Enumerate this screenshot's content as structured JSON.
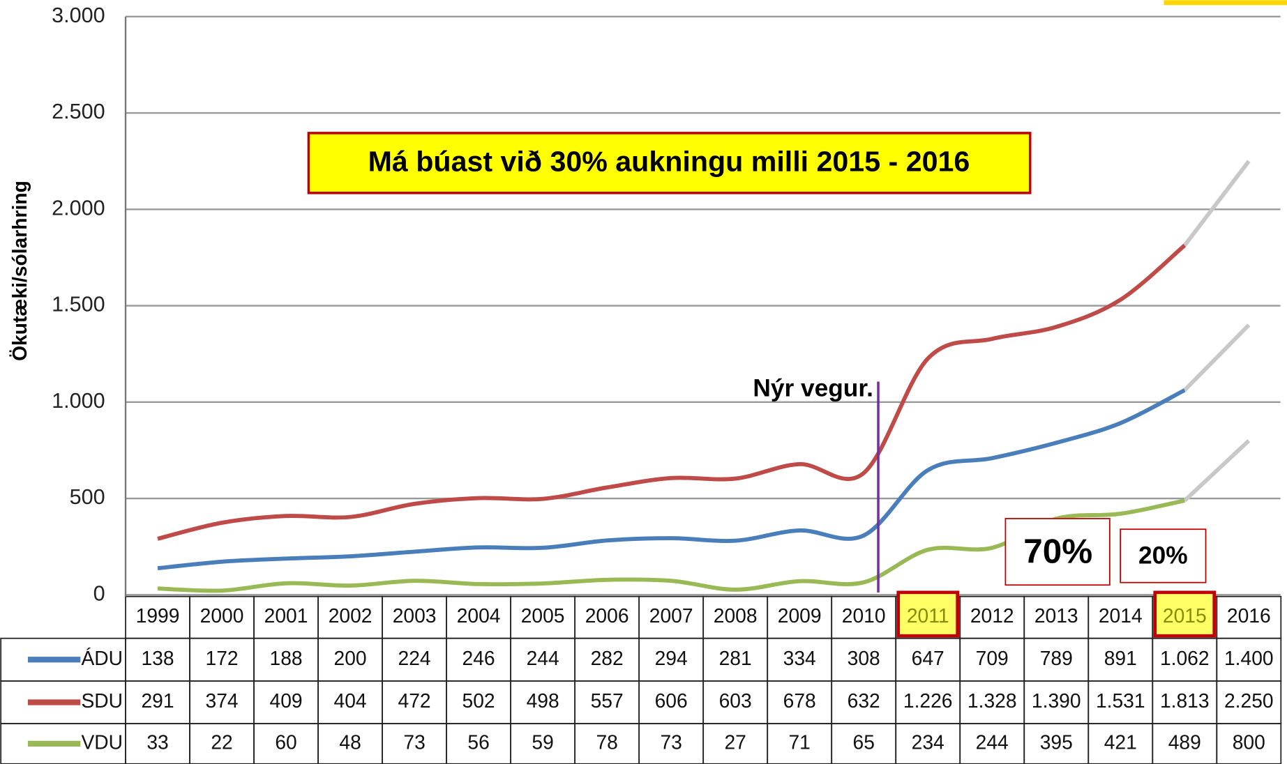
{
  "chart_data": {
    "type": "line",
    "title": "Má búast við 30% aukningu milli 2015 - 2016",
    "y_label": "Ökutæki/sólarhring",
    "annotations": {
      "new_road": "Nýr vegur.",
      "box_1": "70%",
      "box_2": "20%"
    },
    "categories": [
      "1999",
      "2000",
      "2001",
      "2002",
      "2003",
      "2004",
      "2005",
      "2006",
      "2007",
      "2008",
      "2009",
      "2010",
      "2011",
      "2012",
      "2013",
      "2014",
      "2015",
      "2016"
    ],
    "highlight": [
      "2011",
      "2015"
    ],
    "series": [
      {
        "name": "ÁDU",
        "color": "#4a7ebb",
        "values": [
          138,
          172,
          188,
          200,
          224,
          246,
          244,
          282,
          294,
          281,
          334,
          308,
          647,
          709,
          789,
          891,
          1062,
          1400
        ],
        "value_labels": [
          "138",
          "172",
          "188",
          "200",
          "224",
          "246",
          "244",
          "282",
          "294",
          "281",
          "334",
          "308",
          "647",
          "709",
          "789",
          "891",
          "1.062",
          "1.400"
        ]
      },
      {
        "name": "SDU",
        "color": "#be4b48",
        "values": [
          291,
          374,
          409,
          404,
          472,
          502,
          498,
          557,
          606,
          603,
          678,
          632,
          1226,
          1328,
          1390,
          1531,
          1813,
          2250
        ],
        "value_labels": [
          "291",
          "374",
          "409",
          "404",
          "472",
          "502",
          "498",
          "557",
          "606",
          "603",
          "678",
          "632",
          "1.226",
          "1.328",
          "1.390",
          "1.531",
          "1.813",
          "2.250"
        ]
      },
      {
        "name": "VDU",
        "color": "#98b954",
        "values": [
          33,
          22,
          60,
          48,
          73,
          56,
          59,
          78,
          73,
          27,
          71,
          65,
          234,
          244,
          395,
          421,
          489,
          800
        ],
        "value_labels": [
          "33",
          "22",
          "60",
          "48",
          "73",
          "56",
          "59",
          "78",
          "73",
          "27",
          "71",
          "65",
          "234",
          "244",
          "395",
          "421",
          "489",
          "800"
        ]
      }
    ],
    "projection_color": "#c8c8c8",
    "ylim": [
      0,
      3000
    ],
    "yticks": [
      0,
      500,
      {
        "value": 1000,
        "label": "1.000"
      },
      {
        "value": 1500,
        "label": "1.500"
      },
      {
        "value": 2000,
        "label": "2.000"
      },
      {
        "value": 2500,
        "label": "2.500"
      },
      {
        "value": 3000,
        "label": "3.000"
      }
    ],
    "grid": true
  }
}
